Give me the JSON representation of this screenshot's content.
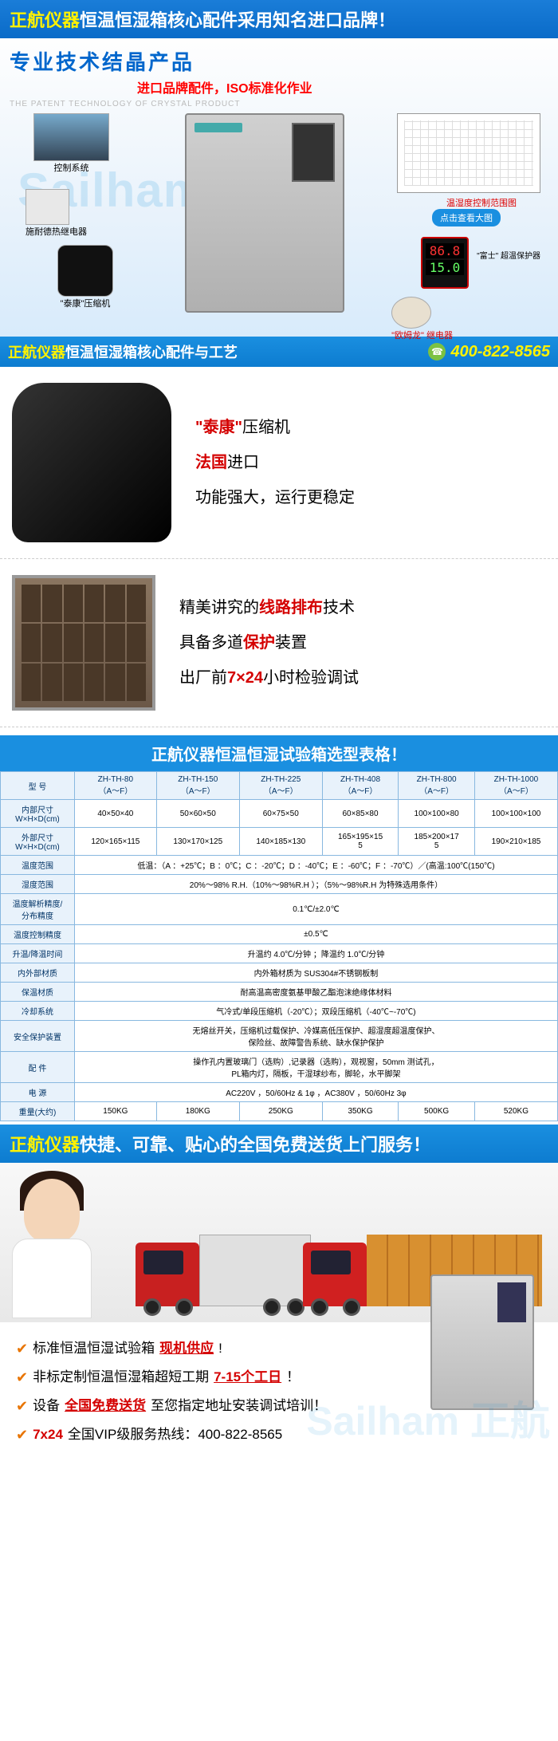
{
  "banner1": {
    "brand": "正航仪器",
    "text": "恒温恒湿箱核心配件采用知名进口品牌！"
  },
  "hero": {
    "title": "专业技术结晶产品",
    "subtitle": "进口品牌配件，ISO标准化作业",
    "subtitle_en": "THE PATENT TECHNOLOGY OF CRYSTAL PRODUCT",
    "watermark": "Sailham",
    "watermark_cn": "正航",
    "labels": {
      "control": "控制系统",
      "heater": "施耐德热继电器",
      "compressor": "\"泰康\"压缩机",
      "chart": "温湿度控制范围图",
      "zoom": "点击查看大图",
      "digital_a": "86.8",
      "digital_b": "15.0",
      "fuji": "\"富士\" 超温保护器",
      "relay": "\"欧姆龙\" 继电器"
    }
  },
  "banner2": {
    "brand": "正航仪器",
    "text": "恒温恒湿箱核心配件与工艺",
    "phone": "400-822-8565"
  },
  "feature1": {
    "l1a": "\"泰康\"",
    "l1b": "压缩机",
    "l2a": "法国",
    "l2b": "进口",
    "l3": "功能强大，运行更稳定"
  },
  "feature2": {
    "l1a": "精美讲究的",
    "l1b": "线路排布",
    "l1c": "技术",
    "l2a": "具备多道",
    "l2b": "保护",
    "l2c": "装置",
    "l3a": "出厂前",
    "l3b": "7×24",
    "l3c": "小时检验调试"
  },
  "tableTitle": "正航仪器恒温恒湿试验箱选型表格！",
  "table": {
    "header": [
      "型 号",
      "ZH-TH-80\n（A～F）",
      "ZH-TH-150\n（A～F）",
      "ZH-TH-225\n（A～F）",
      "ZH-TH-408\n（A～F）",
      "ZH-TH-800\n（A～F）",
      "ZH-TH-1000\n（A～F）"
    ],
    "rows": [
      [
        "内部尺寸\nW×H×D(cm)",
        "40×50×40",
        "50×60×50",
        "60×75×50",
        "60×85×80",
        "100×100×80",
        "100×100×100"
      ],
      [
        "外部尺寸\nW×H×D(cm)",
        "120×165×115",
        "130×170×125",
        "140×185×130",
        "165×195×15\n5",
        "185×200×17\n5",
        "190×210×185"
      ],
      [
        "温度范围",
        "低温：（A ：+25℃；B ：0℃；C ：-20℃；D ：-40℃；E ：-60℃；F ：-70℃）／(高温:100℃(150℃)"
      ],
      [
        "湿度范围",
        "20%～98% R.H.（10%～98%R.H ）；（5%～98%R.H 为特殊选用条件）"
      ],
      [
        "温度解析精度/\n分布精度",
        "0.1℃/±2.0℃"
      ],
      [
        "温度控制精度",
        "±0.5℃"
      ],
      [
        "升温/降温时间",
        "升温约 4.0℃/分钟  ；降温约 1.0℃/分钟"
      ],
      [
        "内外部材质",
        "内外箱材质为 SUS304#不锈钢板制"
      ],
      [
        "保温材质",
        "耐高温高密度氨基甲酸乙酯泡沫绝缘体材料"
      ],
      [
        "冷却系统",
        "气冷式/单段压缩机（-20℃）；双段压缩机（-40℃~-70℃)"
      ],
      [
        "安全保护装置",
        "无熔丝开关，压缩机过载保护、冷媒高低压保护、超湿度超温度保护、\n保险丝、故障警告系统、缺水保护保护"
      ],
      [
        "配 件",
        "操作孔内置玻璃门（选购）,记录器（选购），观视窗，50mm 测试孔，\nPL箱内灯，隔板，干湿球纱布，脚轮，水平脚架"
      ],
      [
        "电 源",
        "AC220V ，50/60Hz & 1φ  ，AC380V ，50/60Hz 3φ"
      ],
      [
        "重量(大约)",
        "150KG",
        "180KG",
        "250KG",
        "350KG",
        "500KG",
        "520KG"
      ]
    ]
  },
  "banner3": {
    "brand": "正航仪器",
    "text": "快捷、可靠、贴心的全国免费送货上门服务！"
  },
  "bullets": [
    {
      "parts": [
        {
          "t": "标准恒温恒湿试验箱"
        },
        {
          "t": "现机供应",
          "red": true,
          "u": true
        },
        {
          "t": "!"
        }
      ]
    },
    {
      "parts": [
        {
          "t": "非标定制恒温恒湿箱超短工期"
        },
        {
          "t": "7-15个工日",
          "red": true,
          "u": true
        },
        {
          "t": "！"
        }
      ]
    },
    {
      "parts": [
        {
          "t": "设备"
        },
        {
          "t": "全国免费送货",
          "red": true,
          "u": true
        },
        {
          "t": "至您指定地址安装调试培训！"
        }
      ]
    },
    {
      "parts": [
        {
          "t": "7x24",
          "red": true
        },
        {
          "t": "全国VIP级服务热线：400-822-8565"
        }
      ]
    }
  ],
  "colors": {
    "blue": "#1a8fe0",
    "yellow": "#fff200",
    "red": "#d40000",
    "orange": "#e87400"
  }
}
